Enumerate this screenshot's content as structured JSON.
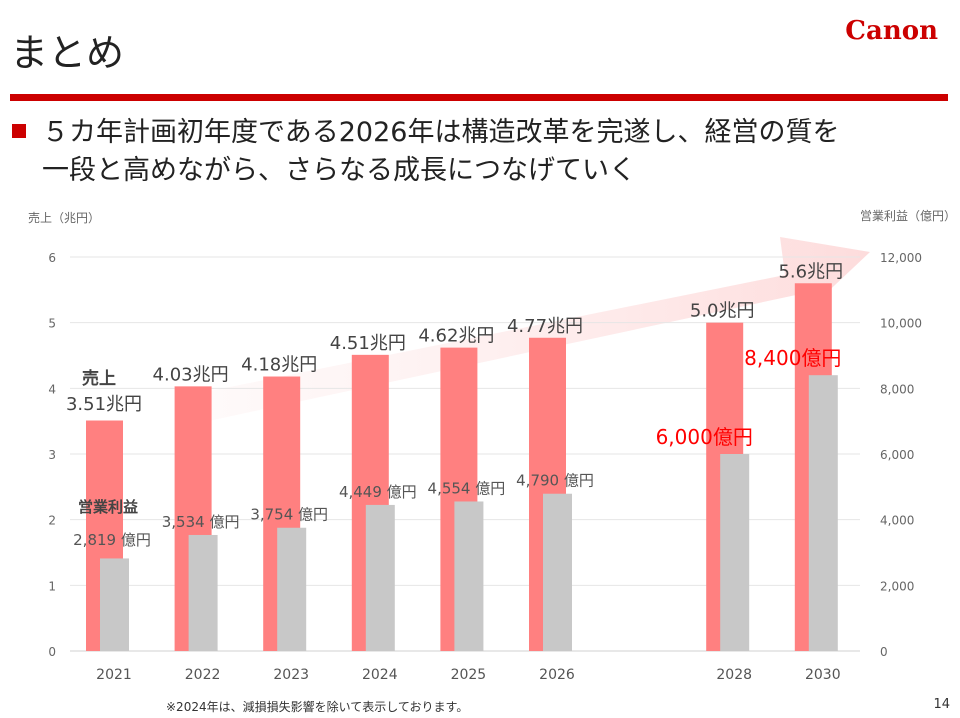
{
  "slide": {
    "title": "まとめ",
    "logo": "Canon",
    "headline_lines": [
      "５カ年計画初年度である2026年は構造改革を完遂し、経営の質を",
      "一段と高めながら、さらなる成長につなげていく"
    ],
    "footnote": "※2024年は、減損損失影響を除いて表示しております。",
    "page_number": "14"
  },
  "colors": {
    "brand": "#cc0000",
    "sales_bar": "#ff8080",
    "profit_bar": "#c8c8c8",
    "highlight_label": "#ff0000",
    "arrow": "#fde0e0"
  },
  "chart_data": {
    "type": "bar",
    "categories": [
      "2021",
      "2022",
      "2023",
      "2024",
      "2025",
      "2026",
      "2028",
      "2030"
    ],
    "series": [
      {
        "name": "売上",
        "axis": "left",
        "unit": "兆円",
        "values": [
          3.51,
          4.03,
          4.18,
          4.51,
          4.62,
          4.77,
          5.0,
          5.6
        ],
        "labels": [
          "3.51兆円",
          "4.03兆円",
          "4.18兆円",
          "4.51兆円",
          "4.62兆円",
          "4.77兆円",
          "5.0兆円",
          "5.6兆円"
        ]
      },
      {
        "name": "営業利益",
        "axis": "right",
        "unit": "億円",
        "values": [
          2819,
          3534,
          3754,
          4449,
          4554,
          4790,
          6000,
          8400
        ],
        "labels": [
          "2,819 億円",
          "3,534 億円",
          "3,754 億円",
          "4,449 億円",
          "4,554 億円",
          "4,790 億円",
          "6,000億円",
          "8,400億円"
        ]
      }
    ],
    "ylabel_left": "売上（兆円）",
    "ylabel_right": "営業利益（億円）",
    "ylim_left": [
      0,
      6
    ],
    "ylim_right": [
      0,
      12000
    ],
    "yticks_left": [
      "0",
      "1",
      "2",
      "3",
      "4",
      "5",
      "6"
    ],
    "yticks_right": [
      "0",
      "2,000",
      "4,000",
      "6,000",
      "8,000",
      "10,000",
      "12,000"
    ],
    "grid": true,
    "legend_labels": {
      "sales": "売上",
      "profit": "営業利益"
    }
  }
}
